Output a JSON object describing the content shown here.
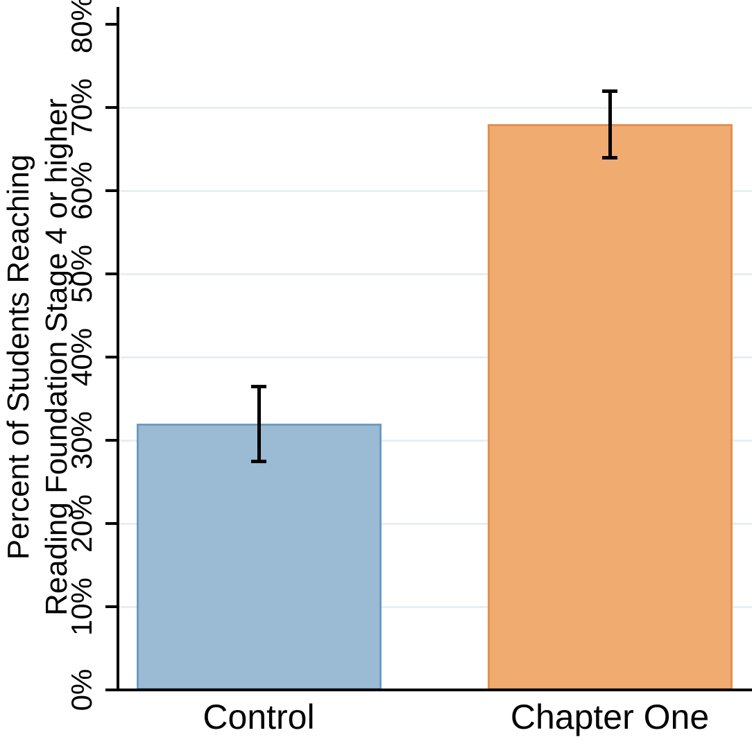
{
  "figure": {
    "background_color": "#ffffff",
    "text_color": "#000000"
  },
  "chart_data": {
    "type": "bar",
    "title": "",
    "xlabel": "",
    "ylabel_line1": "Percent of Students Reaching",
    "ylabel_line2": "Reading Foundation Stage 4 or higher",
    "categories": [
      "Control",
      "Chapter One"
    ],
    "values": [
      32,
      68
    ],
    "error_bars": [
      {
        "low": 27.5,
        "high": 36.5
      },
      {
        "low": 64,
        "high": 72
      }
    ],
    "bar_colors": [
      {
        "fill": "#9bbad3",
        "border": "#6d9cbd"
      },
      {
        "fill": "#f0ab71",
        "border": "#e2914e"
      }
    ],
    "yticks": [
      {
        "value": 0,
        "label": "0%"
      },
      {
        "value": 10,
        "label": "10%"
      },
      {
        "value": 20,
        "label": "20%"
      },
      {
        "value": 30,
        "label": "30%"
      },
      {
        "value": 40,
        "label": "40%"
      },
      {
        "value": 50,
        "label": "50%"
      },
      {
        "value": 60,
        "label": "60%"
      },
      {
        "value": 70,
        "label": "70%"
      },
      {
        "value": 80,
        "label": "80%"
      }
    ],
    "gridline_values": [
      10,
      20,
      30,
      40,
      50,
      60,
      70
    ],
    "ylim": [
      0,
      82
    ],
    "grid": "horizontal",
    "grid_color": "#e9eef2",
    "axis_color": "#000000",
    "error_bar_color": "#000000",
    "legend": "none"
  }
}
